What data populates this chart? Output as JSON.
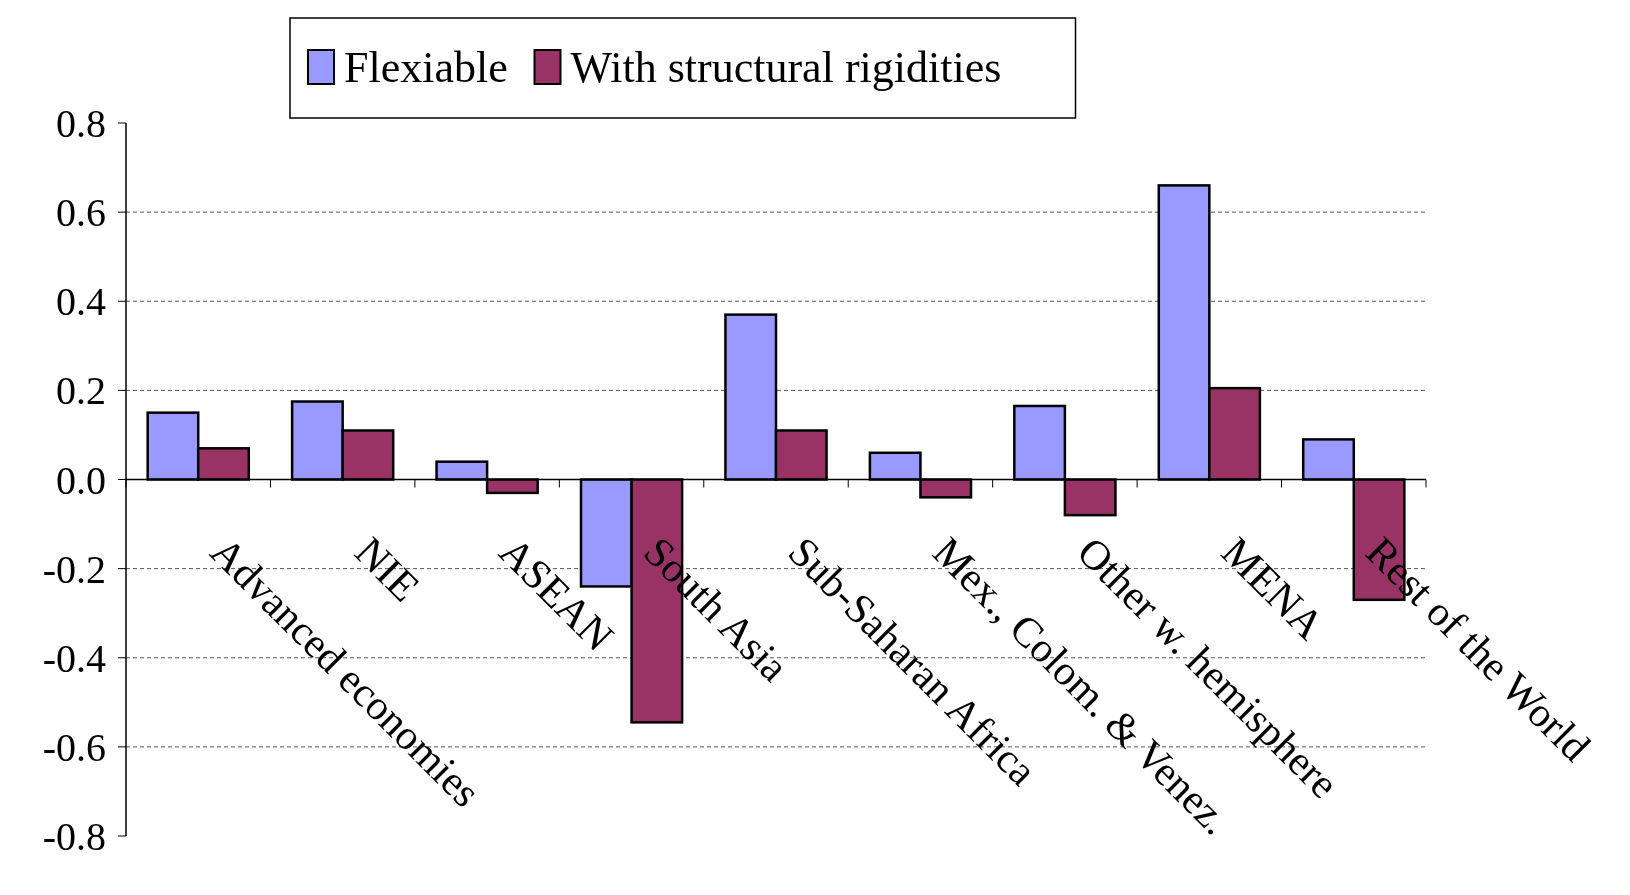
{
  "chart_data": {
    "type": "bar",
    "categories": [
      "Advanced economies",
      "NIE",
      "ASEAN",
      "South Asia",
      "Sub-Saharan Africa",
      "Mex., Colom. & Venez.",
      "Other w. hemisphere",
      "MENA",
      "Rest of the World"
    ],
    "series": [
      {
        "name": "Flexiable",
        "color": "#9999ff",
        "values": [
          0.15,
          0.175,
          0.04,
          -0.24,
          0.37,
          0.06,
          0.165,
          0.66,
          0.09
        ]
      },
      {
        "name": "With structural rigidities",
        "color": "#993366",
        "values": [
          0.07,
          0.11,
          -0.03,
          -0.545,
          0.11,
          -0.04,
          -0.08,
          0.205,
          -0.27
        ]
      }
    ],
    "ylim": [
      -0.8,
      0.8
    ],
    "yticks": [
      {
        "value": -0.8,
        "label": "-0.8"
      },
      {
        "value": -0.6,
        "label": "-0.6"
      },
      {
        "value": -0.4,
        "label": "-0.4"
      },
      {
        "value": -0.2,
        "label": "-0.2"
      },
      {
        "value": 0,
        "label": "0.0"
      },
      {
        "value": 0.2,
        "label": "0.2"
      },
      {
        "value": 0.4,
        "label": "0.4"
      },
      {
        "value": 0.6,
        "label": "0.6"
      },
      {
        "value": 0.8,
        "label": "0.8"
      }
    ],
    "grid": "y",
    "legend": "top"
  }
}
